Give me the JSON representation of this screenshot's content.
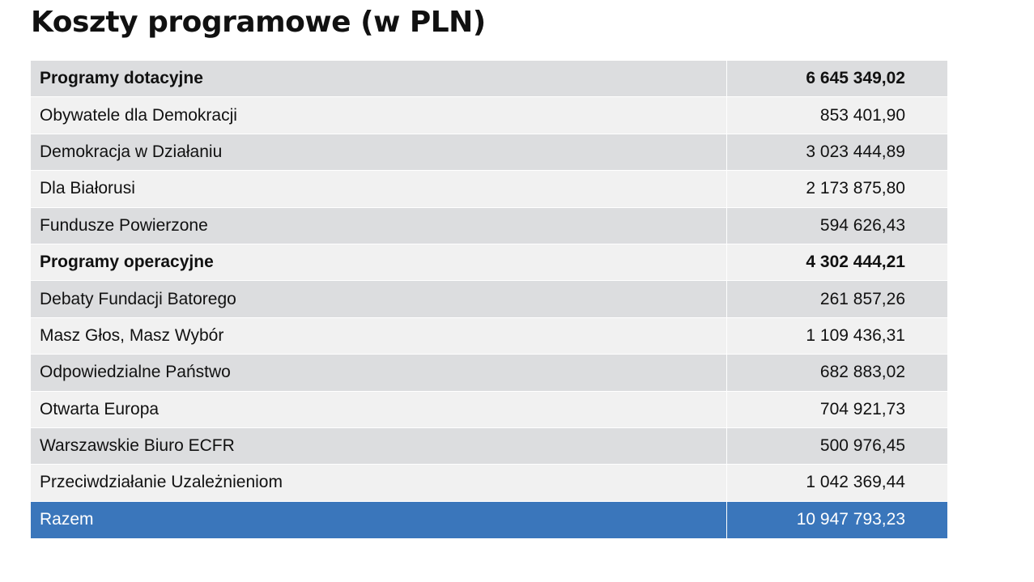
{
  "title": "Koszty programowe (w PLN)",
  "rows": [
    {
      "label": "Programy dotacyjne",
      "value": "6 645 349,02",
      "type": "header"
    },
    {
      "label": "Obywatele dla Demokracji",
      "value": "853 401,90",
      "type": "item"
    },
    {
      "label": "Demokracja w Działaniu",
      "value": "3 023 444,89",
      "type": "item"
    },
    {
      "label": "Dla Białorusi",
      "value": "2 173 875,80",
      "type": "item"
    },
    {
      "label": "Fundusze Powierzone",
      "value": "594 626,43",
      "type": "item"
    },
    {
      "label": "Programy operacyjne",
      "value": "4 302 444,21",
      "type": "header"
    },
    {
      "label": "Debaty Fundacji Batorego",
      "value": "261 857,26",
      "type": "item"
    },
    {
      "label": "Masz Głos, Masz Wybór",
      "value": "1 109 436,31",
      "type": "item"
    },
    {
      "label": "Odpowiedzialne Państwo",
      "value": "682 883,02",
      "type": "item"
    },
    {
      "label": "Otwarta Europa",
      "value": "704 921,73",
      "type": "item"
    },
    {
      "label": "Warszawskie Biuro ECFR",
      "value": "500 976,45",
      "type": "item"
    },
    {
      "label": "Przeciwdziałanie Uzależnieniom",
      "value": "1 042 369,44",
      "type": "item"
    }
  ],
  "total": {
    "label": "Razem",
    "value": "10 947 793,23"
  },
  "colors": {
    "row_dark": "#dcdddf",
    "row_light": "#f1f1f1",
    "total_background": "#3a76bb",
    "total_text": "#ffffff"
  }
}
